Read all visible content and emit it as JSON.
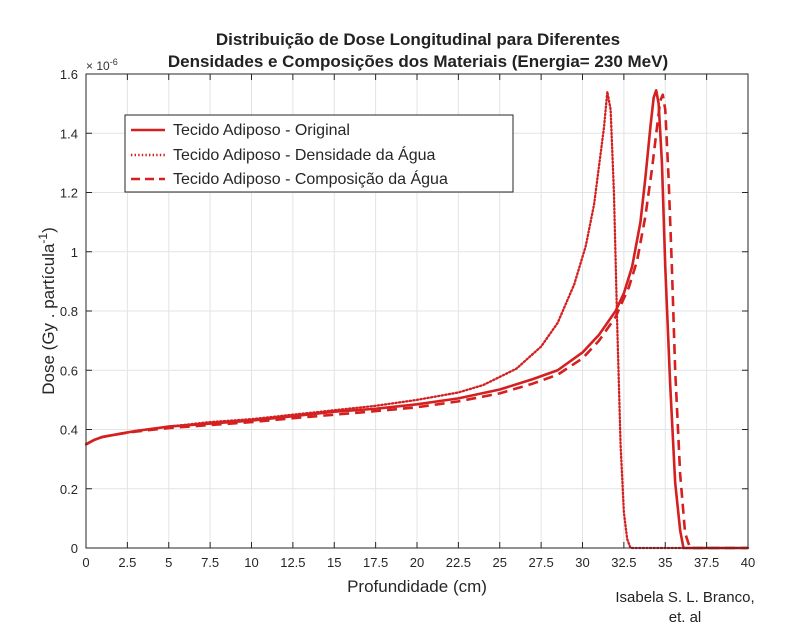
{
  "chart_data": {
    "type": "line",
    "title": [
      "Distribuição de Dose Longitudinal para Diferentes",
      "Densidades e Composições dos Materiais (Energia= 230 MeV)"
    ],
    "xlabel": "Profundidade (cm)",
    "ylabel_main": "Dose (Gy . partícula",
    "ylabel_sup": "-1",
    "ylabel_close": ")",
    "y_multiplier_base": "× 10",
    "y_multiplier_exp": "-6",
    "xlim": [
      0,
      40
    ],
    "ylim": [
      0,
      1.6
    ],
    "xticks": [
      0,
      2.5,
      5,
      7.5,
      10,
      12.5,
      15,
      17.5,
      20,
      22.5,
      25,
      27.5,
      30,
      32.5,
      35,
      37.5,
      40
    ],
    "xtick_labels": [
      "0",
      "2.5",
      "5",
      "7.5",
      "10",
      "12.5",
      "15",
      "17.5",
      "20",
      "22.5",
      "25",
      "27.5",
      "30",
      "32.5",
      "35",
      "37.5",
      "40"
    ],
    "yticks": [
      0,
      0.2,
      0.4,
      0.6,
      0.8,
      1.0,
      1.2,
      1.4,
      1.6
    ],
    "ytick_labels": [
      "0",
      "0.2",
      "0.4",
      "0.6",
      "0.8",
      "1",
      "1.2",
      "1.4",
      "1.6"
    ],
    "grid": true,
    "legend_position": "top-left",
    "series": [
      {
        "name": "Tecido Adiposo - Original",
        "style": "solid",
        "color": "#d42020",
        "x": [
          0,
          0.5,
          1,
          2,
          3,
          5,
          7.5,
          10,
          12.5,
          15,
          17.5,
          20,
          22.5,
          25,
          27,
          28.5,
          30,
          31,
          32,
          32.5,
          33,
          33.5,
          33.8,
          34.1,
          34.3,
          34.45,
          34.6,
          34.8,
          35,
          35.3,
          35.6,
          35.9,
          36.1,
          36.5,
          40
        ],
        "y": [
          0.35,
          0.365,
          0.375,
          0.385,
          0.395,
          0.41,
          0.42,
          0.43,
          0.445,
          0.46,
          0.47,
          0.485,
          0.505,
          0.535,
          0.57,
          0.6,
          0.66,
          0.72,
          0.8,
          0.86,
          0.95,
          1.1,
          1.25,
          1.42,
          1.52,
          1.545,
          1.5,
          1.3,
          0.95,
          0.55,
          0.22,
          0.06,
          0.0,
          0.0,
          0.0
        ]
      },
      {
        "name": "Tecido Adiposo - Densidade da Água",
        "style": "dotted",
        "color": "#d42020",
        "x": [
          0,
          0.5,
          1,
          2,
          3,
          5,
          7.5,
          10,
          12.5,
          15,
          17.5,
          20,
          22.5,
          24,
          26,
          27.5,
          28.5,
          29.5,
          30.2,
          30.7,
          31,
          31.3,
          31.5,
          31.7,
          31.9,
          32.1,
          32.3,
          32.5,
          32.7,
          32.9,
          33.2,
          40
        ],
        "y": [
          0.35,
          0.365,
          0.375,
          0.385,
          0.395,
          0.41,
          0.425,
          0.435,
          0.45,
          0.465,
          0.48,
          0.5,
          0.525,
          0.55,
          0.605,
          0.68,
          0.76,
          0.89,
          1.02,
          1.16,
          1.29,
          1.42,
          1.54,
          1.48,
          1.2,
          0.75,
          0.35,
          0.12,
          0.03,
          0.0,
          0.0,
          0.0
        ]
      },
      {
        "name": "Tecido Adiposo - Composição da Água",
        "style": "dashed",
        "color": "#d42020",
        "x": [
          0,
          0.5,
          1,
          2,
          3,
          5,
          7.5,
          10,
          12.5,
          15,
          17.5,
          20,
          22.5,
          25,
          27,
          28.5,
          30,
          31,
          32,
          32.8,
          33.3,
          33.8,
          34.2,
          34.5,
          34.7,
          34.85,
          35,
          35.2,
          35.4,
          35.6,
          35.9,
          36.2,
          36.5,
          40
        ],
        "y": [
          0.35,
          0.365,
          0.375,
          0.385,
          0.393,
          0.405,
          0.415,
          0.425,
          0.438,
          0.45,
          0.462,
          0.475,
          0.495,
          0.522,
          0.555,
          0.585,
          0.64,
          0.7,
          0.78,
          0.88,
          0.97,
          1.12,
          1.28,
          1.42,
          1.51,
          1.53,
          1.48,
          1.25,
          0.95,
          0.6,
          0.25,
          0.05,
          0.0,
          0.0
        ]
      }
    ]
  },
  "credit": [
    "Isabela S. L. Branco,",
    "et. al"
  ]
}
